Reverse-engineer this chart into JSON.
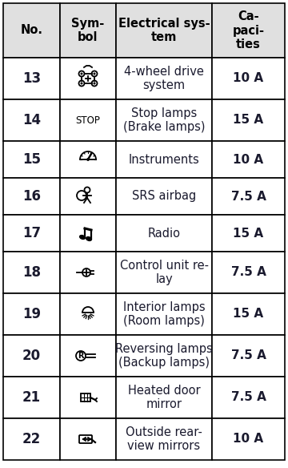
{
  "title_row": [
    "No.",
    "Sym-\nbol",
    "Electrical sys-\ntem",
    "Ca-\npaci-\nties"
  ],
  "rows": [
    {
      "no": "13",
      "system": "4-wheel drive\nsystem",
      "cap": "10 A"
    },
    {
      "no": "14",
      "system": "Stop lamps\n(Brake lamps)",
      "cap": "15 A"
    },
    {
      "no": "15",
      "system": "Instruments",
      "cap": "10 A"
    },
    {
      "no": "16",
      "system": "SRS airbag",
      "cap": "7.5 A"
    },
    {
      "no": "17",
      "system": "Radio",
      "cap": "15 A"
    },
    {
      "no": "18",
      "system": "Control unit re-\nlay",
      "cap": "7.5 A"
    },
    {
      "no": "19",
      "system": "Interior lamps\n(Room lamps)",
      "cap": "15 A"
    },
    {
      "no": "20",
      "system": "Reversing lamps\n(Backup lamps)",
      "cap": "7.5 A"
    },
    {
      "no": "21",
      "system": "Heated door\nmirror",
      "cap": "7.5 A"
    },
    {
      "no": "22",
      "system": "Outside rear-\nview mirrors",
      "cap": "10 A"
    }
  ],
  "header_bg": "#e0e0e0",
  "row_bg": "#ffffff",
  "border_color": "#000000",
  "text_color": "#1a1a2e",
  "header_fontsize": 10.5,
  "body_fontsize": 10.5,
  "no_fontsize": 12,
  "cap_fontsize": 11
}
